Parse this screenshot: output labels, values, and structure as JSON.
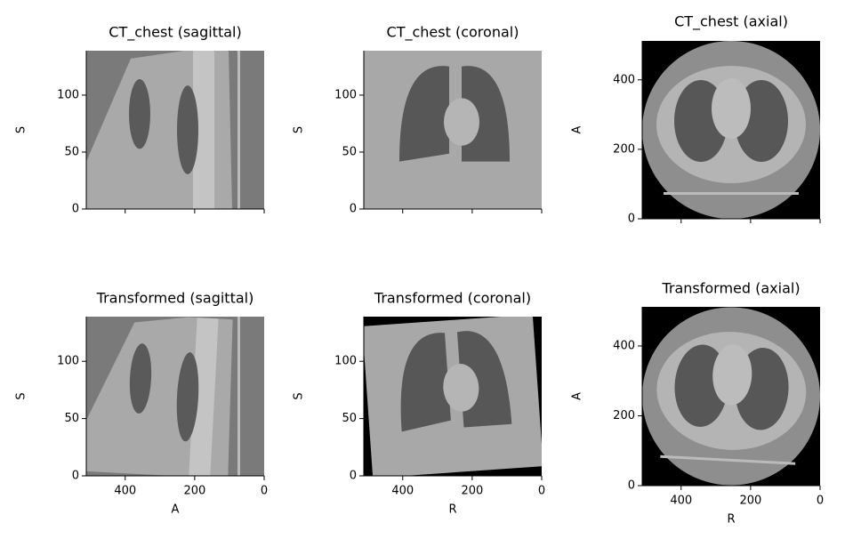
{
  "panels": [
    {
      "title": "CT_chest (sagittal)",
      "ylabel": "S",
      "xlim": [
        512,
        0
      ],
      "ylim": [
        0,
        139
      ],
      "xticks": [
        400,
        200,
        0
      ],
      "yticks": [
        0,
        50,
        100
      ]
    },
    {
      "title": "CT_chest (coronal)",
      "ylabel": "S",
      "xlim": [
        512,
        0
      ],
      "ylim": [
        0,
        139
      ],
      "xticks": [
        400,
        200,
        0
      ],
      "yticks": [
        0,
        50,
        100
      ]
    },
    {
      "title": "CT_chest (axial)",
      "ylabel": "A",
      "xlim": [
        512,
        0
      ],
      "ylim": [
        0,
        512
      ],
      "xticks": [
        400,
        200,
        0
      ],
      "yticks": [
        0,
        200,
        400
      ]
    },
    {
      "title": "Transformed (sagittal)",
      "xlabel": "A",
      "ylabel": "S",
      "xlim": [
        512,
        0
      ],
      "ylim": [
        0,
        139
      ],
      "xticks": [
        400,
        200,
        0
      ],
      "yticks": [
        0,
        50,
        100
      ]
    },
    {
      "title": "Transformed (coronal)",
      "xlabel": "R",
      "ylabel": "S",
      "xlim": [
        512,
        0
      ],
      "ylim": [
        0,
        139
      ],
      "xticks": [
        400,
        200,
        0
      ],
      "yticks": [
        0,
        50,
        100
      ]
    },
    {
      "title": "Transformed (axial)",
      "xlabel": "R",
      "ylabel": "A",
      "xlim": [
        512,
        0
      ],
      "ylim": [
        0,
        512
      ],
      "xticks": [
        400,
        200,
        0
      ],
      "yticks": [
        0,
        200,
        400
      ]
    }
  ]
}
